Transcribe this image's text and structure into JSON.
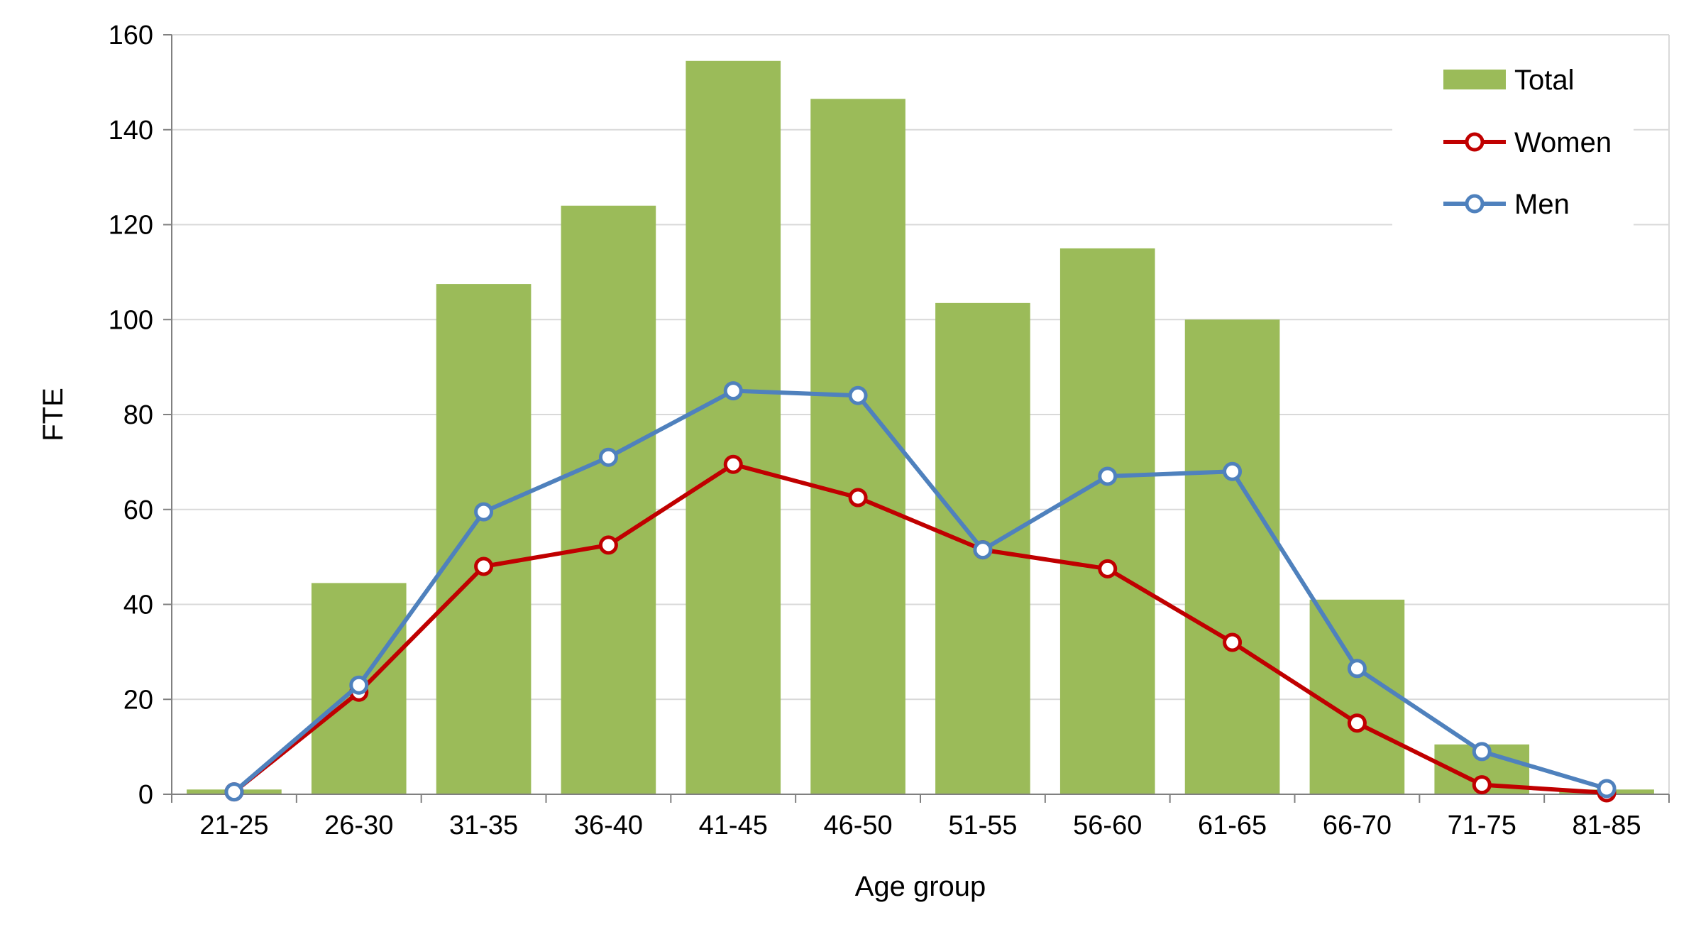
{
  "chart_data": {
    "type": "bar",
    "categories": [
      "21-25",
      "26-30",
      "31-35",
      "36-40",
      "41-45",
      "46-50",
      "51-55",
      "56-60",
      "61-65",
      "66-70",
      "71-75",
      "81-85"
    ],
    "series": [
      {
        "name": "Total",
        "type": "bar",
        "color": "#9BBB59",
        "values": [
          1,
          44.5,
          107.5,
          124,
          154.5,
          146.5,
          103.5,
          115,
          100,
          41,
          10.5,
          1
        ]
      },
      {
        "name": "Women",
        "type": "line",
        "color": "#C00000",
        "values": [
          0.5,
          21.5,
          48,
          52.5,
          69.5,
          62.5,
          51.5,
          47.5,
          32,
          15,
          2,
          0.3
        ]
      },
      {
        "name": "Men",
        "type": "line",
        "color": "#4F81BD",
        "values": [
          0.5,
          23,
          59.5,
          71,
          85,
          84,
          51.5,
          67,
          68,
          26.5,
          9,
          1.2
        ]
      }
    ],
    "xlabel": "Age group",
    "ylabel": "FTE",
    "ylim": [
      0,
      160
    ],
    "yticks": [
      "0",
      "20",
      "40",
      "60",
      "80",
      "100",
      "120",
      "140",
      "160"
    ],
    "grid": true,
    "legend_position": "top-right"
  }
}
